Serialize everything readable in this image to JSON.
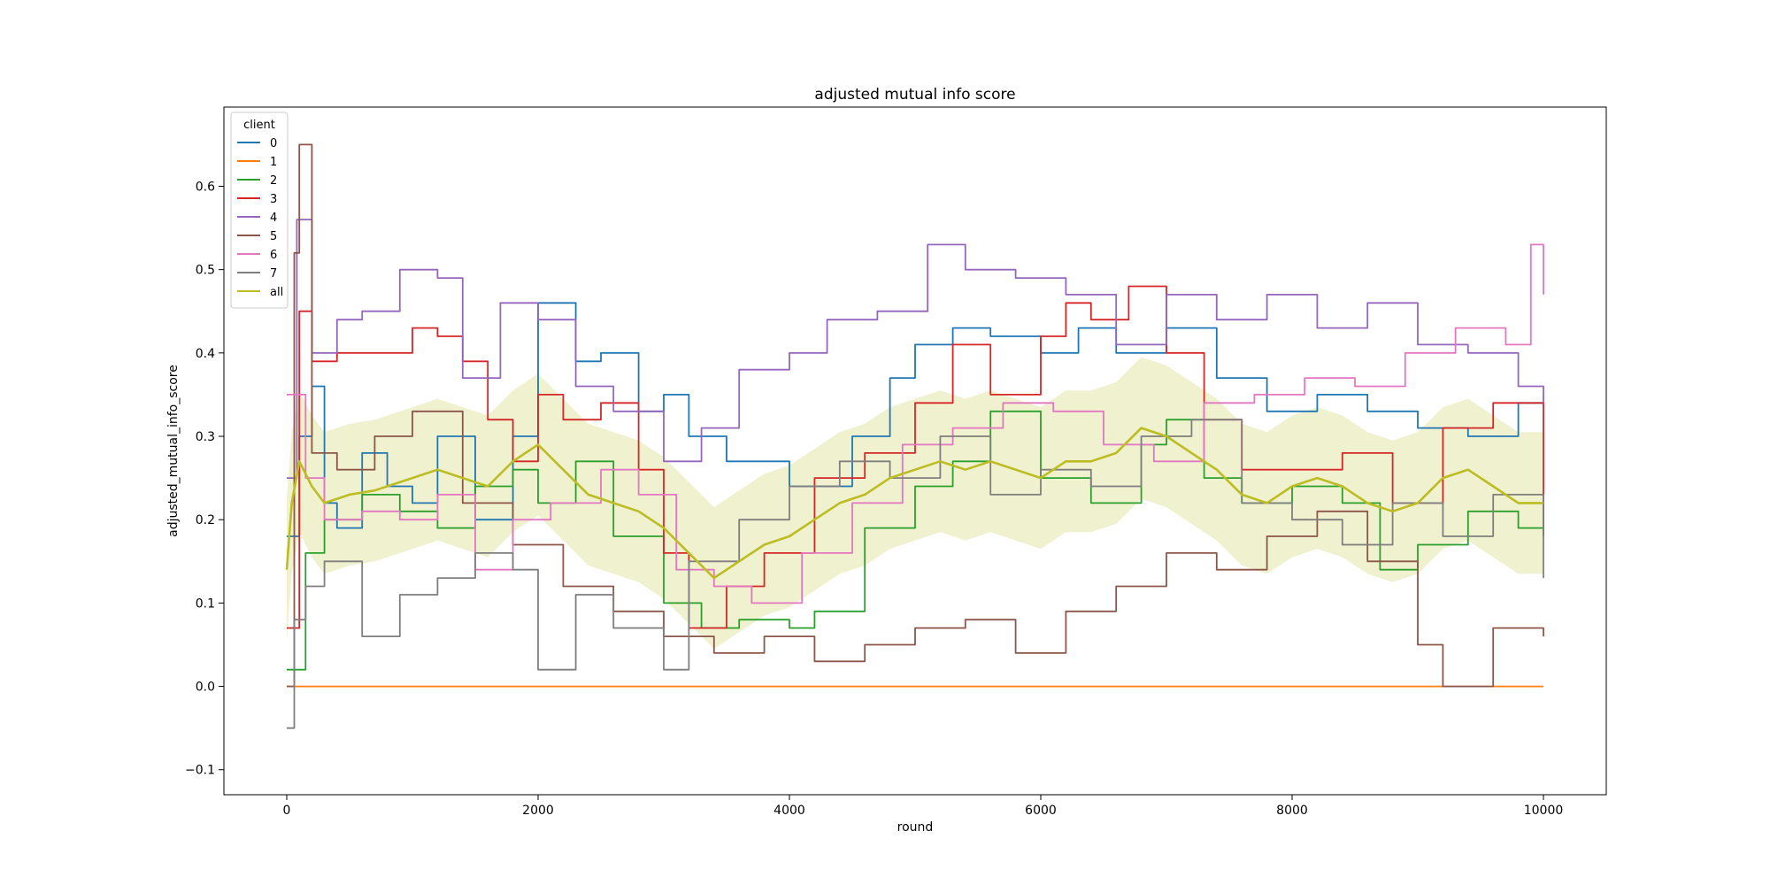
{
  "chart_data": {
    "type": "line",
    "title": "adjusted mutual info score",
    "xlabel": "round",
    "ylabel": "adjusted_mutual_info_score",
    "xlim": [
      -500,
      10500
    ],
    "ylim": [
      -0.13,
      0.695
    ],
    "xticks": [
      0,
      2000,
      4000,
      6000,
      8000,
      10000
    ],
    "yticks": [
      -0.1,
      0.0,
      0.1,
      0.2,
      0.3,
      0.4,
      0.5,
      0.6
    ],
    "ytick_labels": [
      "−0.1",
      "0.0",
      "0.1",
      "0.2",
      "0.3",
      "0.4",
      "0.5",
      "0.6"
    ],
    "grid": false,
    "legend": {
      "title": "client",
      "placement": "upper-left"
    },
    "series": [
      {
        "name": "0",
        "color": "#1f77b4",
        "points": [
          [
            0,
            0.18
          ],
          [
            100,
            0.3
          ],
          [
            200,
            0.36
          ],
          [
            300,
            0.22
          ],
          [
            400,
            0.19
          ],
          [
            600,
            0.28
          ],
          [
            800,
            0.24
          ],
          [
            1000,
            0.22
          ],
          [
            1200,
            0.3
          ],
          [
            1500,
            0.2
          ],
          [
            1800,
            0.3
          ],
          [
            2000,
            0.46
          ],
          [
            2300,
            0.39
          ],
          [
            2500,
            0.4
          ],
          [
            2800,
            0.33
          ],
          [
            3000,
            0.35
          ],
          [
            3200,
            0.3
          ],
          [
            3500,
            0.27
          ],
          [
            4000,
            0.24
          ],
          [
            4500,
            0.3
          ],
          [
            4800,
            0.37
          ],
          [
            5000,
            0.41
          ],
          [
            5300,
            0.43
          ],
          [
            5600,
            0.42
          ],
          [
            6000,
            0.4
          ],
          [
            6300,
            0.43
          ],
          [
            6600,
            0.4
          ],
          [
            7000,
            0.43
          ],
          [
            7400,
            0.37
          ],
          [
            7800,
            0.33
          ],
          [
            8200,
            0.35
          ],
          [
            8600,
            0.33
          ],
          [
            9000,
            0.31
          ],
          [
            9400,
            0.3
          ],
          [
            9800,
            0.34
          ],
          [
            10000,
            0.34
          ]
        ]
      },
      {
        "name": "1",
        "color": "#ff7f0e",
        "points": [
          [
            0,
            0.0
          ],
          [
            10000,
            0.0
          ]
        ]
      },
      {
        "name": "2",
        "color": "#2ca02c",
        "points": [
          [
            0,
            0.02
          ],
          [
            150,
            0.16
          ],
          [
            300,
            0.2
          ],
          [
            600,
            0.23
          ],
          [
            900,
            0.21
          ],
          [
            1200,
            0.19
          ],
          [
            1500,
            0.24
          ],
          [
            1800,
            0.26
          ],
          [
            2000,
            0.22
          ],
          [
            2300,
            0.27
          ],
          [
            2600,
            0.18
          ],
          [
            3000,
            0.1
          ],
          [
            3300,
            0.07
          ],
          [
            3600,
            0.08
          ],
          [
            4000,
            0.07
          ],
          [
            4200,
            0.09
          ],
          [
            4600,
            0.19
          ],
          [
            5000,
            0.24
          ],
          [
            5300,
            0.27
          ],
          [
            5600,
            0.33
          ],
          [
            6000,
            0.25
          ],
          [
            6400,
            0.22
          ],
          [
            6800,
            0.29
          ],
          [
            7000,
            0.32
          ],
          [
            7300,
            0.25
          ],
          [
            7600,
            0.22
          ],
          [
            8000,
            0.24
          ],
          [
            8400,
            0.22
          ],
          [
            8700,
            0.14
          ],
          [
            9000,
            0.17
          ],
          [
            9400,
            0.21
          ],
          [
            9800,
            0.19
          ],
          [
            10000,
            0.19
          ]
        ]
      },
      {
        "name": "3",
        "color": "#d62728",
        "points": [
          [
            0,
            0.07
          ],
          [
            100,
            0.45
          ],
          [
            200,
            0.39
          ],
          [
            400,
            0.4
          ],
          [
            700,
            0.4
          ],
          [
            1000,
            0.43
          ],
          [
            1200,
            0.42
          ],
          [
            1400,
            0.39
          ],
          [
            1600,
            0.32
          ],
          [
            1800,
            0.27
          ],
          [
            2000,
            0.35
          ],
          [
            2200,
            0.32
          ],
          [
            2500,
            0.34
          ],
          [
            2800,
            0.26
          ],
          [
            3000,
            0.16
          ],
          [
            3200,
            0.07
          ],
          [
            3500,
            0.12
          ],
          [
            3800,
            0.16
          ],
          [
            4200,
            0.25
          ],
          [
            4600,
            0.28
          ],
          [
            5000,
            0.34
          ],
          [
            5300,
            0.41
          ],
          [
            5600,
            0.35
          ],
          [
            6000,
            0.42
          ],
          [
            6200,
            0.46
          ],
          [
            6400,
            0.44
          ],
          [
            6700,
            0.48
          ],
          [
            7000,
            0.4
          ],
          [
            7300,
            0.32
          ],
          [
            7600,
            0.26
          ],
          [
            8000,
            0.26
          ],
          [
            8400,
            0.28
          ],
          [
            8800,
            0.22
          ],
          [
            9200,
            0.31
          ],
          [
            9600,
            0.34
          ],
          [
            10000,
            0.18
          ]
        ]
      },
      {
        "name": "4",
        "color": "#9467bd",
        "points": [
          [
            0,
            0.25
          ],
          [
            80,
            0.56
          ],
          [
            200,
            0.4
          ],
          [
            400,
            0.44
          ],
          [
            600,
            0.45
          ],
          [
            900,
            0.5
          ],
          [
            1200,
            0.49
          ],
          [
            1400,
            0.37
          ],
          [
            1700,
            0.46
          ],
          [
            2000,
            0.44
          ],
          [
            2300,
            0.36
          ],
          [
            2600,
            0.33
          ],
          [
            3000,
            0.27
          ],
          [
            3300,
            0.31
          ],
          [
            3600,
            0.38
          ],
          [
            4000,
            0.4
          ],
          [
            4300,
            0.44
          ],
          [
            4700,
            0.45
          ],
          [
            5100,
            0.53
          ],
          [
            5400,
            0.5
          ],
          [
            5800,
            0.49
          ],
          [
            6200,
            0.47
          ],
          [
            6600,
            0.41
          ],
          [
            7000,
            0.47
          ],
          [
            7400,
            0.44
          ],
          [
            7800,
            0.47
          ],
          [
            8200,
            0.43
          ],
          [
            8600,
            0.46
          ],
          [
            9000,
            0.41
          ],
          [
            9400,
            0.4
          ],
          [
            9800,
            0.36
          ],
          [
            10000,
            0.34
          ]
        ]
      },
      {
        "name": "5",
        "color": "#8c564b",
        "points": [
          [
            0,
            0.0
          ],
          [
            60,
            0.52
          ],
          [
            100,
            0.65
          ],
          [
            200,
            0.28
          ],
          [
            400,
            0.26
          ],
          [
            700,
            0.3
          ],
          [
            1000,
            0.33
          ],
          [
            1400,
            0.22
          ],
          [
            1800,
            0.17
          ],
          [
            2200,
            0.12
          ],
          [
            2600,
            0.09
          ],
          [
            3000,
            0.06
          ],
          [
            3400,
            0.04
          ],
          [
            3800,
            0.06
          ],
          [
            4200,
            0.03
          ],
          [
            4600,
            0.05
          ],
          [
            5000,
            0.07
          ],
          [
            5400,
            0.08
          ],
          [
            5800,
            0.04
          ],
          [
            6200,
            0.09
          ],
          [
            6600,
            0.12
          ],
          [
            7000,
            0.16
          ],
          [
            7400,
            0.14
          ],
          [
            7800,
            0.18
          ],
          [
            8200,
            0.21
          ],
          [
            8600,
            0.15
          ],
          [
            9000,
            0.05
          ],
          [
            9200,
            0.0
          ],
          [
            9600,
            0.07
          ],
          [
            10000,
            0.06
          ]
        ]
      },
      {
        "name": "6",
        "color": "#e377c2",
        "points": [
          [
            0,
            0.35
          ],
          [
            150,
            0.25
          ],
          [
            300,
            0.2
          ],
          [
            600,
            0.21
          ],
          [
            900,
            0.2
          ],
          [
            1200,
            0.23
          ],
          [
            1500,
            0.14
          ],
          [
            1800,
            0.2
          ],
          [
            2100,
            0.22
          ],
          [
            2500,
            0.26
          ],
          [
            2800,
            0.23
          ],
          [
            3100,
            0.14
          ],
          [
            3400,
            0.12
          ],
          [
            3700,
            0.1
          ],
          [
            4100,
            0.16
          ],
          [
            4500,
            0.22
          ],
          [
            4900,
            0.29
          ],
          [
            5300,
            0.31
          ],
          [
            5700,
            0.34
          ],
          [
            6100,
            0.33
          ],
          [
            6500,
            0.29
          ],
          [
            6900,
            0.27
          ],
          [
            7300,
            0.34
          ],
          [
            7700,
            0.35
          ],
          [
            8100,
            0.37
          ],
          [
            8500,
            0.36
          ],
          [
            8900,
            0.4
          ],
          [
            9300,
            0.43
          ],
          [
            9700,
            0.41
          ],
          [
            9900,
            0.53
          ],
          [
            10000,
            0.47
          ]
        ]
      },
      {
        "name": "7",
        "color": "#7f7f7f",
        "points": [
          [
            0,
            -0.05
          ],
          [
            60,
            0.08
          ],
          [
            150,
            0.12
          ],
          [
            300,
            0.15
          ],
          [
            600,
            0.06
          ],
          [
            900,
            0.11
          ],
          [
            1200,
            0.13
          ],
          [
            1500,
            0.16
          ],
          [
            1800,
            0.14
          ],
          [
            2000,
            0.02
          ],
          [
            2300,
            0.11
          ],
          [
            2600,
            0.07
          ],
          [
            3000,
            0.02
          ],
          [
            3200,
            0.15
          ],
          [
            3600,
            0.2
          ],
          [
            4000,
            0.24
          ],
          [
            4400,
            0.27
          ],
          [
            4800,
            0.25
          ],
          [
            5200,
            0.3
          ],
          [
            5600,
            0.23
          ],
          [
            6000,
            0.26
          ],
          [
            6400,
            0.24
          ],
          [
            6800,
            0.3
          ],
          [
            7200,
            0.32
          ],
          [
            7600,
            0.22
          ],
          [
            8000,
            0.2
          ],
          [
            8400,
            0.17
          ],
          [
            8800,
            0.22
          ],
          [
            9200,
            0.18
          ],
          [
            9600,
            0.23
          ],
          [
            10000,
            0.13
          ]
        ]
      },
      {
        "name": "all",
        "color": "#bcbd22",
        "band": 0.085,
        "points": [
          [
            0,
            0.14
          ],
          [
            40,
            0.22
          ],
          [
            100,
            0.27
          ],
          [
            200,
            0.24
          ],
          [
            300,
            0.22
          ],
          [
            500,
            0.23
          ],
          [
            700,
            0.235
          ],
          [
            1000,
            0.25
          ],
          [
            1200,
            0.26
          ],
          [
            1400,
            0.25
          ],
          [
            1600,
            0.24
          ],
          [
            1800,
            0.27
          ],
          [
            2000,
            0.29
          ],
          [
            2200,
            0.26
          ],
          [
            2400,
            0.23
          ],
          [
            2600,
            0.22
          ],
          [
            2800,
            0.21
          ],
          [
            3000,
            0.19
          ],
          [
            3200,
            0.16
          ],
          [
            3400,
            0.13
          ],
          [
            3600,
            0.15
          ],
          [
            3800,
            0.17
          ],
          [
            4000,
            0.18
          ],
          [
            4200,
            0.2
          ],
          [
            4400,
            0.22
          ],
          [
            4600,
            0.23
          ],
          [
            4800,
            0.25
          ],
          [
            5000,
            0.26
          ],
          [
            5200,
            0.27
          ],
          [
            5400,
            0.26
          ],
          [
            5600,
            0.27
          ],
          [
            5800,
            0.26
          ],
          [
            6000,
            0.25
          ],
          [
            6200,
            0.27
          ],
          [
            6400,
            0.27
          ],
          [
            6600,
            0.28
          ],
          [
            6800,
            0.31
          ],
          [
            7000,
            0.3
          ],
          [
            7200,
            0.28
          ],
          [
            7400,
            0.26
          ],
          [
            7600,
            0.23
          ],
          [
            7800,
            0.22
          ],
          [
            8000,
            0.24
          ],
          [
            8200,
            0.25
          ],
          [
            8400,
            0.24
          ],
          [
            8600,
            0.22
          ],
          [
            8800,
            0.21
          ],
          [
            9000,
            0.22
          ],
          [
            9200,
            0.25
          ],
          [
            9400,
            0.26
          ],
          [
            9600,
            0.24
          ],
          [
            9800,
            0.22
          ],
          [
            10000,
            0.22
          ]
        ]
      }
    ]
  }
}
